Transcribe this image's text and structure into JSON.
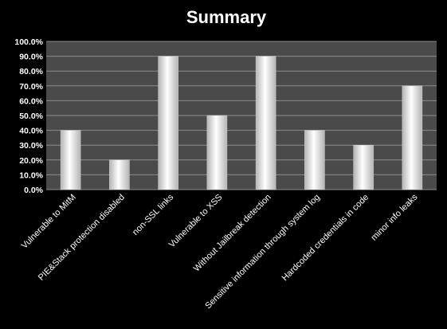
{
  "chart_data": {
    "type": "bar",
    "title": "Summary",
    "categories": [
      "Vulnerable to MitM",
      "PIE&Stack protection disabled",
      "non-SSL links",
      "Vulnerable to XSS",
      "Without Jailbreak detection",
      "Sensitive information through system log",
      "Hardcoded credentials in code",
      "minor info leaks"
    ],
    "values": [
      40,
      20,
      90,
      50,
      90,
      40,
      30,
      70
    ],
    "y_ticks": [
      "0.0%",
      "10.0%",
      "20.0%",
      "30.0%",
      "40.0%",
      "50.0%",
      "60.0%",
      "70.0%",
      "80.0%",
      "90.0%",
      "100.0%"
    ],
    "ylim": [
      0,
      100
    ],
    "unit": "%",
    "grid": true,
    "legend": "none",
    "xlabel": "",
    "ylabel": ""
  },
  "colors": {
    "page_background": "#000000",
    "plot_background": "#4a4a4a",
    "gridline": "#8c8c8c",
    "bar_center": "#ffffff",
    "bar_edge": "#b4b4b4",
    "text": "#ffffff"
  }
}
